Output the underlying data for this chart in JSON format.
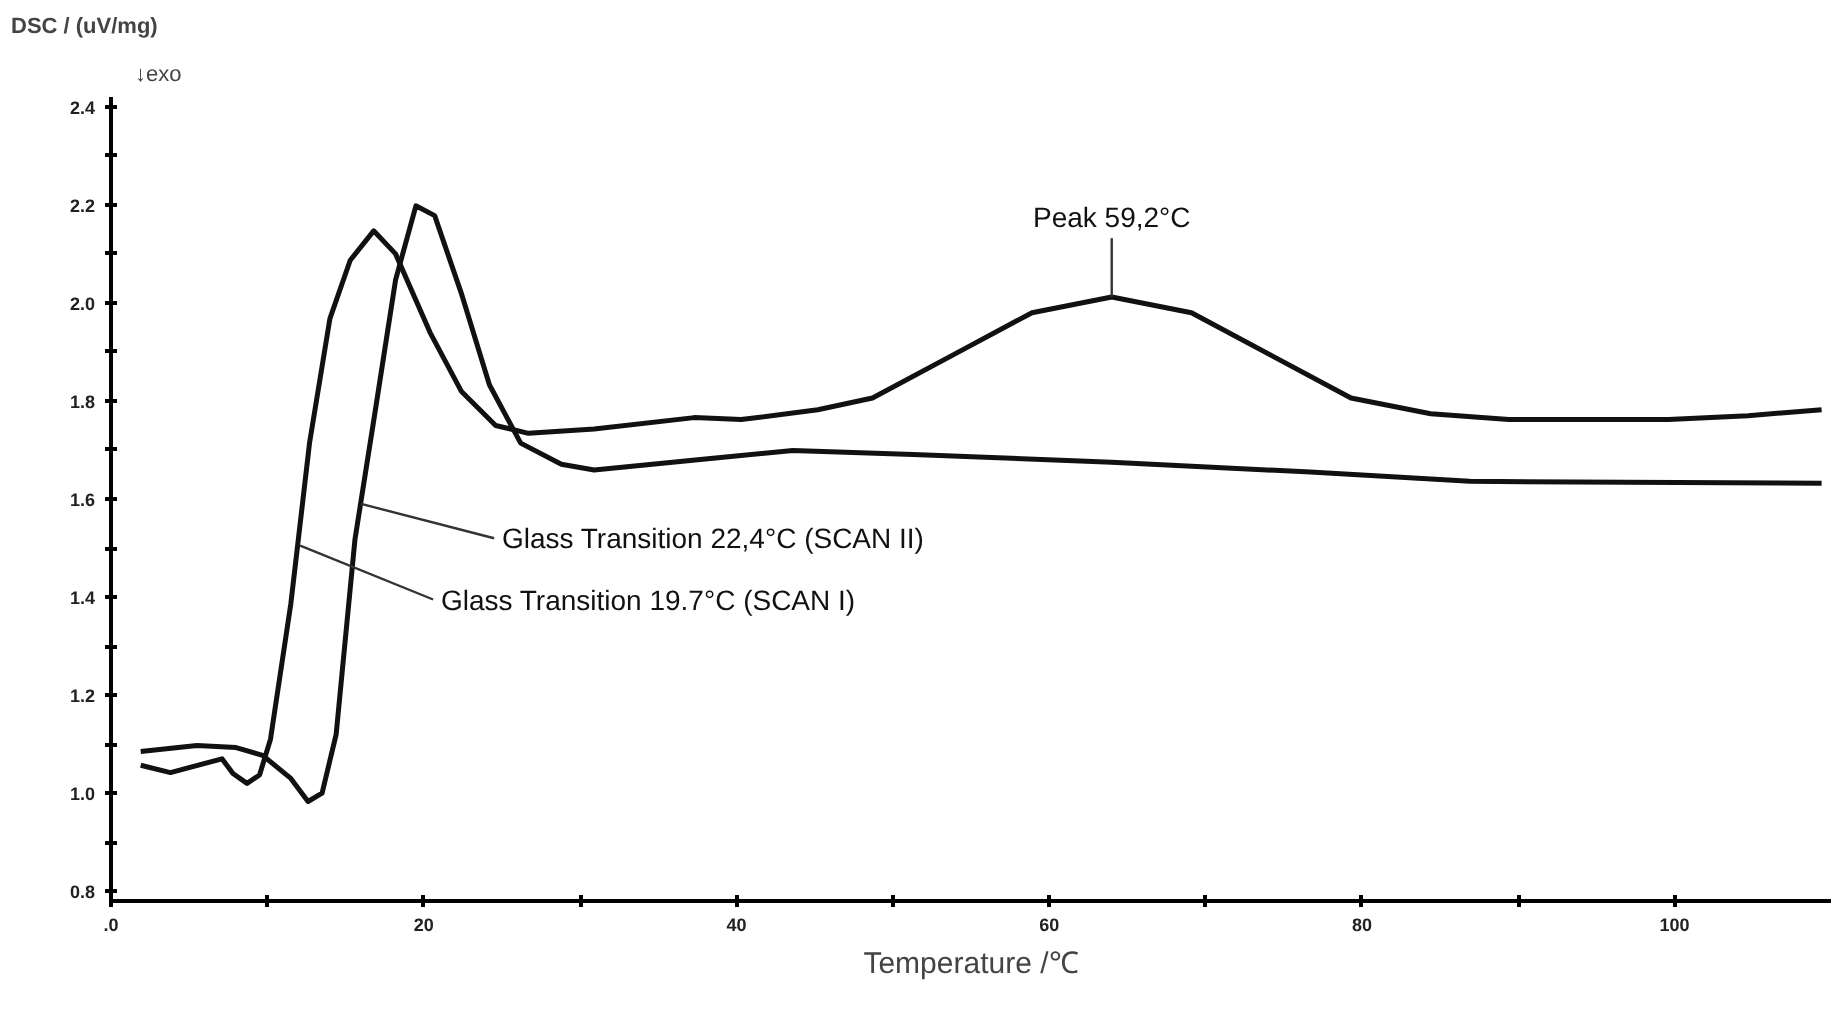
{
  "chart_data": {
    "type": "line",
    "xlabel": "Temperature /℃",
    "ylabel": "DSC / (uV/mg)",
    "xlim": [
      0,
      110
    ],
    "ylim": [
      0.78,
      2.42
    ],
    "xticks": [
      {
        "value": 0,
        "label": ".0"
      },
      {
        "value": 10,
        "label": null
      },
      20,
      {
        "value": 30,
        "label": null
      },
      40,
      {
        "value": 50,
        "label": null
      },
      60,
      {
        "value": 70,
        "label": null
      },
      80,
      {
        "value": 90,
        "label": null
      },
      100
    ],
    "yticks": [
      {
        "value": 0.8,
        "label": "0.8"
      },
      {
        "value": 0.9,
        "label": null
      },
      {
        "value": 1.0,
        "label": "1.0"
      },
      {
        "value": 1.1,
        "label": null
      },
      {
        "value": 1.2,
        "label": "1.2"
      },
      {
        "value": 1.3,
        "label": null
      },
      {
        "value": 1.4,
        "label": "1.4"
      },
      {
        "value": 1.5,
        "label": null
      },
      {
        "value": 1.6,
        "label": "1.6"
      },
      {
        "value": 1.7,
        "label": null
      },
      {
        "value": 1.8,
        "label": "1.8"
      },
      {
        "value": 1.9,
        "label": null
      },
      {
        "value": 2.0,
        "label": "2.0"
      },
      {
        "value": 2.1,
        "label": null
      },
      {
        "value": 2.2,
        "label": "2.2"
      },
      {
        "value": 2.3,
        "label": null
      },
      {
        "value": 2.4,
        "label": "2.4"
      }
    ],
    "grid": false,
    "marker": "none",
    "line_style": "solid",
    "annotations": [
      "↓exo",
      {
        "text": "Peak 59,2°C",
        "x": 64.0,
        "y": 2.012
      },
      {
        "text": "Glass Transition 22,4°C  (SCAN II)",
        "x": 16.0,
        "y": 1.59
      },
      {
        "text": "Glass Transition 19.7°C  (SCAN I)",
        "x": 12.1,
        "y": 1.505
      }
    ],
    "series": [
      {
        "color": "#111111",
        "x": [
          1.9,
          3.8,
          7.1,
          7.8,
          8.7,
          9.5,
          10.2,
          11.5,
          12.7,
          14.0,
          15.3,
          16.8,
          18.2,
          20.4,
          22.4,
          24.6,
          26.7,
          30.9,
          37.3,
          40.3,
          45.2,
          48.7,
          53.8,
          58.9,
          64.0,
          69.1,
          74.2,
          79.3,
          84.4,
          89.4,
          99.6,
          104.7,
          109.4
        ],
        "values": [
          1.057,
          1.042,
          1.07,
          1.04,
          1.02,
          1.037,
          1.11,
          1.386,
          1.715,
          1.968,
          2.087,
          2.147,
          2.1,
          1.94,
          1.82,
          1.75,
          1.734,
          1.743,
          1.766,
          1.762,
          1.782,
          1.806,
          1.893,
          1.98,
          2.012,
          1.98,
          1.893,
          1.806,
          1.774,
          1.762,
          1.762,
          1.77,
          1.782
        ]
      },
      {
        "color": "#111111",
        "x": [
          1.9,
          5.5,
          8.0,
          9.7,
          11.5,
          12.6,
          13.5,
          14.4,
          15.6,
          16.9,
          18.2,
          19.5,
          20.7,
          22.4,
          24.2,
          26.2,
          28.8,
          30.9,
          38.5,
          43.6,
          51.3,
          64.0,
          76.7,
          86.9,
          109.4
        ],
        "values": [
          1.085,
          1.097,
          1.093,
          1.077,
          1.03,
          0.983,
          1.0,
          1.12,
          1.517,
          1.78,
          2.047,
          2.198,
          2.178,
          2.02,
          1.833,
          1.714,
          1.671,
          1.659,
          1.683,
          1.699,
          1.691,
          1.675,
          1.655,
          1.636,
          1.632
        ]
      }
    ]
  }
}
